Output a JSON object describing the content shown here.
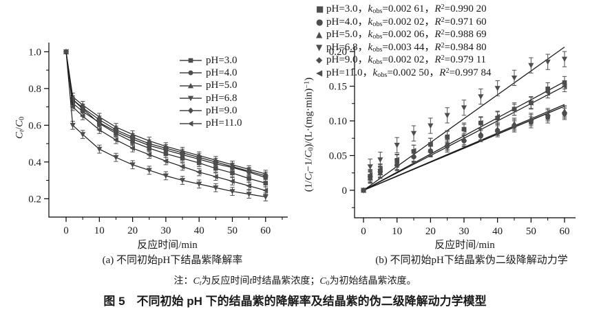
{
  "page": {
    "title": "图 5　不同初始 pH 下的结晶紫的降解率及结晶紫的伪二级降解动力学模型",
    "note_parts": [
      {
        "t": "注：",
        "s": ""
      },
      {
        "t": "C",
        "s": "i"
      },
      {
        "t": "t",
        "s": "isub"
      },
      {
        "t": "为反应时间",
        "s": ""
      },
      {
        "t": "t",
        "s": "i"
      },
      {
        "t": "时结晶紫浓度；",
        "s": ""
      },
      {
        "t": "C",
        "s": "i"
      },
      {
        "t": "0",
        "s": "sub"
      },
      {
        "t": "为初始结晶紫浓度。",
        "s": ""
      }
    ]
  },
  "labels": {
    "k_italic": "k",
    "k_sub": "obs",
    "r_italic": "R",
    "r_sup": "2",
    "equals": "=",
    "comma": "，"
  },
  "colors": {
    "marker": "#4d4d4d",
    "line": "#1c1c1c",
    "axis": "#000000",
    "text": "#1a1a1a"
  },
  "chart_data": [
    {
      "id": "a",
      "type": "line",
      "caption": "(a) 不同初始pH下结晶紫降解率",
      "xlabel": "反应时间/min",
      "ylabel_parts": [
        {
          "t": "C",
          "s": "i"
        },
        {
          "t": "t",
          "s": "isub"
        },
        {
          "t": "/",
          "s": ""
        },
        {
          "t": "C",
          "s": "i"
        },
        {
          "t": "0",
          "s": "sub"
        }
      ],
      "xlim": [
        -5.2,
        66.6
      ],
      "ylim": [
        0.1,
        1.05
      ],
      "xticks": [
        0,
        10,
        20,
        30,
        40,
        50,
        60
      ],
      "xtick_labels": [
        "0",
        "10",
        "20",
        "30",
        "40",
        "50",
        "60"
      ],
      "xminor": [
        5,
        15,
        25,
        35,
        45,
        55,
        65
      ],
      "yticks": [
        0.2,
        0.4,
        0.6,
        0.8,
        1.0
      ],
      "ytick_labels": [
        "0.2",
        "0.4",
        "0.6",
        "0.8",
        "1.0"
      ],
      "yminor": [
        0.3,
        0.5,
        0.7,
        0.9
      ],
      "grid": false,
      "legend_position": "inside-top-right",
      "x": [
        0,
        2,
        5,
        10,
        15,
        20,
        25,
        30,
        35,
        40,
        45,
        50,
        55,
        60
      ],
      "series": [
        {
          "name": "pH=3.0",
          "marker": "square",
          "error": 0.02,
          "values": [
            1.0,
            0.74,
            0.69,
            0.61,
            0.555,
            0.51,
            0.475,
            0.445,
            0.42,
            0.395,
            0.365,
            0.34,
            0.31,
            0.285
          ]
        },
        {
          "name": "pH=4.0",
          "marker": "circle",
          "error": 0.02,
          "values": [
            1.0,
            0.72,
            0.675,
            0.615,
            0.565,
            0.525,
            0.49,
            0.465,
            0.44,
            0.415,
            0.39,
            0.37,
            0.345,
            0.315
          ]
        },
        {
          "name": "pH=5.0",
          "marker": "triangle-up",
          "error": 0.02,
          "values": [
            1.0,
            0.755,
            0.71,
            0.645,
            0.59,
            0.55,
            0.515,
            0.485,
            0.46,
            0.435,
            0.41,
            0.385,
            0.36,
            0.335
          ]
        },
        {
          "name": "pH=6.8",
          "marker": "triangle-down",
          "error": 0.022,
          "values": [
            1.0,
            0.6,
            0.55,
            0.47,
            0.425,
            0.385,
            0.355,
            0.325,
            0.3,
            0.28,
            0.26,
            0.24,
            0.225,
            0.21
          ]
        },
        {
          "name": "pH=9.0",
          "marker": "diamond",
          "error": 0.02,
          "values": [
            1.0,
            0.74,
            0.695,
            0.63,
            0.575,
            0.535,
            0.5,
            0.475,
            0.45,
            0.425,
            0.4,
            0.375,
            0.35,
            0.325
          ]
        },
        {
          "name": "pH=11.0",
          "marker": "triangle-left",
          "error": 0.02,
          "values": [
            1.0,
            0.7,
            0.65,
            0.575,
            0.52,
            0.475,
            0.44,
            0.405,
            0.375,
            0.345,
            0.32,
            0.295,
            0.27,
            0.245
          ]
        }
      ]
    },
    {
      "id": "b",
      "type": "scatter",
      "caption": "(b) 不同初始pH下结晶紫伪二级降解动力学",
      "xlabel": "反应时间/min",
      "ylabel_parts": [
        {
          "t": "(1/",
          "s": ""
        },
        {
          "t": "C",
          "s": "i"
        },
        {
          "t": "t",
          "s": "isub"
        },
        {
          "t": "−1/",
          "s": ""
        },
        {
          "t": "C",
          "s": "i"
        },
        {
          "t": "0",
          "s": "sub"
        },
        {
          "t": ")/(L·(mg·min)",
          "s": ""
        },
        {
          "t": "−1",
          "s": "sup"
        },
        {
          "t": ")",
          "s": ""
        }
      ],
      "xlim": [
        -2.7,
        63.3
      ],
      "ylim": [
        -0.04,
        0.207
      ],
      "xticks": [
        0,
        10,
        20,
        30,
        40,
        50,
        60
      ],
      "xtick_labels": [
        "0",
        "10",
        "20",
        "30",
        "40",
        "50",
        "60"
      ],
      "xminor": [
        5,
        15,
        25,
        35,
        45,
        55
      ],
      "yticks": [
        0,
        0.05,
        0.1,
        0.15,
        0.2
      ],
      "ytick_labels": [
        "0",
        "0.05",
        "0.10",
        "0.15",
        "0.20"
      ],
      "yminor": [
        -0.025,
        0.025,
        0.075,
        0.125,
        0.175
      ],
      "grid": false,
      "legend_position": "outside-top",
      "fit_through_origin": true,
      "x": [
        0,
        2,
        5,
        10,
        15,
        20,
        25,
        30,
        35,
        40,
        45,
        50,
        55,
        60
      ],
      "series": [
        {
          "name": "pH=3.0",
          "marker": "square",
          "glyph": "■",
          "k": 0.00261,
          "k_label": "0.002 61",
          "r2_label": "0.990 20",
          "error": 0.009,
          "values": [
            0,
            0.02,
            0.028,
            0.042,
            0.056,
            0.066,
            0.077,
            0.088,
            0.097,
            0.104,
            0.117,
            0.126,
            0.146,
            0.155
          ]
        },
        {
          "name": "pH=4.0",
          "marker": "circle",
          "glyph": "●",
          "k": 0.00202,
          "k_label": "0.002 02",
          "r2_label": "0.971 60",
          "error": 0.008,
          "values": [
            0,
            0.019,
            0.026,
            0.036,
            0.048,
            0.056,
            0.063,
            0.071,
            0.078,
            0.085,
            0.092,
            0.098,
            0.105,
            0.11
          ]
        },
        {
          "name": "pH=5.0",
          "marker": "triangle-up",
          "glyph": "▲",
          "k": 0.00206,
          "k_label": "0.002 06",
          "r2_label": "0.988 69",
          "error": 0.008,
          "values": [
            0,
            0.018,
            0.025,
            0.038,
            0.05,
            0.058,
            0.067,
            0.074,
            0.081,
            0.088,
            0.096,
            0.103,
            0.11,
            0.114
          ]
        },
        {
          "name": "pH=6.8",
          "marker": "triangle-down",
          "glyph": "▼",
          "k": 0.00344,
          "k_label": "0.003 44",
          "r2_label": "0.984 80",
          "error": 0.011,
          "values": [
            0,
            0.034,
            0.044,
            0.065,
            0.082,
            0.093,
            0.108,
            0.119,
            0.135,
            0.147,
            0.162,
            0.18,
            0.185,
            0.189
          ]
        },
        {
          "name": "pH=9.0",
          "marker": "diamond",
          "glyph": "◆",
          "k": 0.00202,
          "k_label": "0.002 02",
          "r2_label": "0.979 11",
          "error": 0.008,
          "values": [
            0,
            0.02,
            0.027,
            0.037,
            0.049,
            0.057,
            0.065,
            0.072,
            0.08,
            0.087,
            0.094,
            0.101,
            0.108,
            0.112
          ]
        },
        {
          "name": "pH=11.0",
          "marker": "triangle-left",
          "glyph": "◀",
          "k": 0.0025,
          "k_label": "0.002 50",
          "r2_label": "0.997 84",
          "error": 0.008,
          "values": [
            0,
            0.022,
            0.03,
            0.044,
            0.057,
            0.067,
            0.077,
            0.087,
            0.097,
            0.106,
            0.116,
            0.126,
            0.141,
            0.15
          ]
        }
      ]
    }
  ]
}
